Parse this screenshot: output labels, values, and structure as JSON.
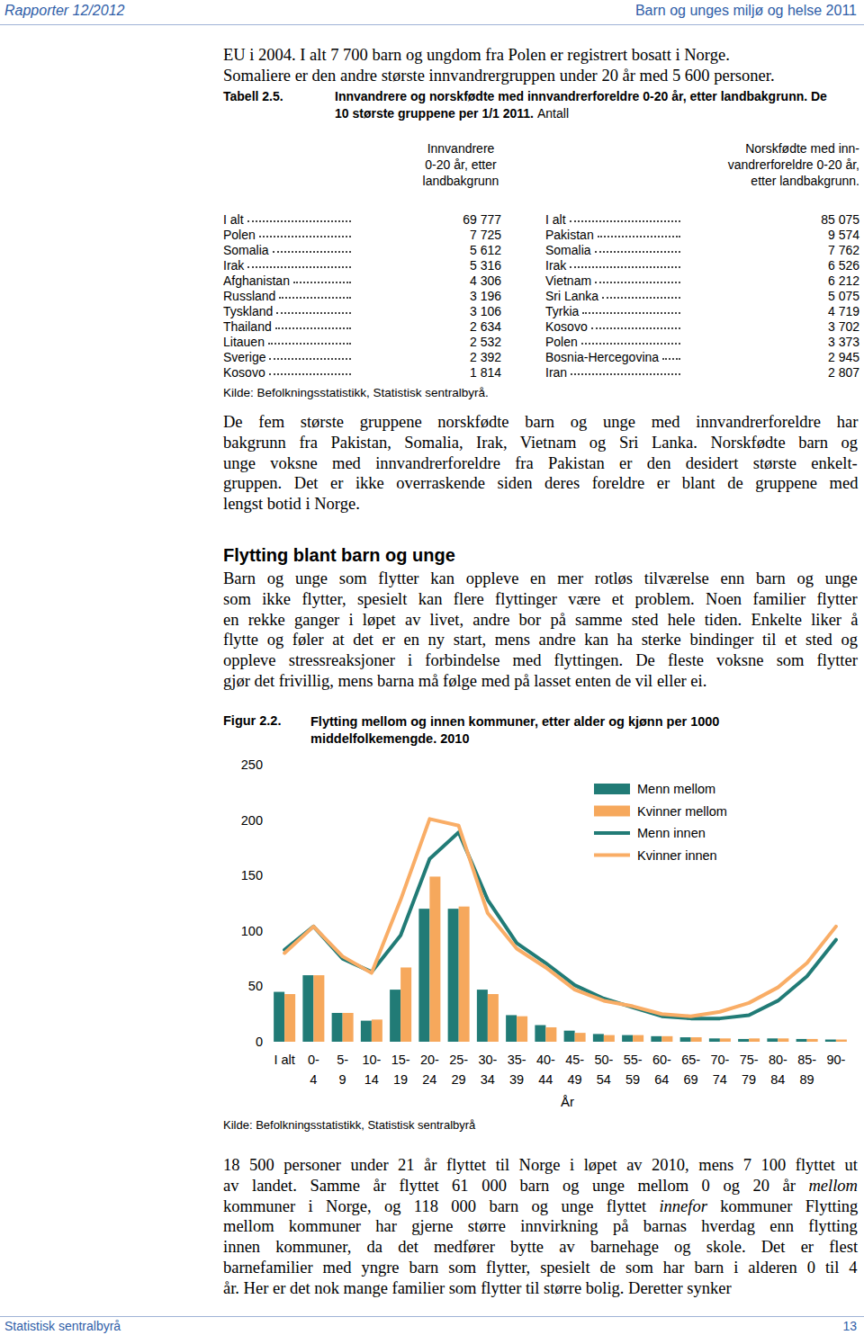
{
  "header": {
    "left": "Rapporter 12/2012",
    "right": "Barn og unges miljø og helse 2011"
  },
  "intro": {
    "lines": [
      "EU i 2004. I alt 7 700 barn og ungdom fra Polen er registrert bosatt i Norge.",
      "Somaliere er den andre største innvandrergruppen under 20 år med 5 600 personer."
    ]
  },
  "table": {
    "label": "Tabell 2.5.",
    "title_lines": [
      "Innvandrere og norskfødte med innvandrerforeldre 0-20 år, etter landbakgrunn. De",
      "10 største gruppene per 1/1 2011."
    ],
    "unit": "Antall",
    "columns": [
      {
        "header_lines": [
          "Innvandrere",
          "0-20 år, etter",
          "landbakgrunn"
        ],
        "rows": [
          {
            "name": "I alt",
            "value": "69 777"
          },
          {
            "name": "Polen",
            "value": "7 725"
          },
          {
            "name": "Somalia",
            "value": "5 612"
          },
          {
            "name": "Irak",
            "value": "5 316"
          },
          {
            "name": "Afghanistan",
            "value": "4 306"
          },
          {
            "name": "Russland",
            "value": "3 196"
          },
          {
            "name": "Tyskland",
            "value": "3 106"
          },
          {
            "name": "Thailand",
            "value": "2 634"
          },
          {
            "name": "Litauen",
            "value": "2 532"
          },
          {
            "name": "Sverige",
            "value": "2 392"
          },
          {
            "name": "Kosovo",
            "value": "1 814"
          }
        ]
      },
      {
        "header_lines": [
          "Norskfødte med inn-",
          "vandrerforeldre 0-20 år,",
          "etter landbakgrunn."
        ],
        "rows": [
          {
            "name": "I alt",
            "value": "85 075"
          },
          {
            "name": "Pakistan",
            "value": "9 574"
          },
          {
            "name": "Somalia",
            "value": "7 762"
          },
          {
            "name": "Irak",
            "value": "6 526"
          },
          {
            "name": "Vietnam",
            "value": "6 212"
          },
          {
            "name": "Sri Lanka",
            "value": "5 075"
          },
          {
            "name": "Tyrkia",
            "value": "4 719"
          },
          {
            "name": "Kosovo",
            "value": "3 702"
          },
          {
            "name": "Polen",
            "value": "3 373"
          },
          {
            "name": "Bosnia-Hercegovina",
            "value": "2 945"
          },
          {
            "name": "Iran",
            "value": "2 807"
          }
        ]
      }
    ],
    "source": "Kilde: Befolkningsstatistikk, Statistisk sentralbyrå."
  },
  "text_1": {
    "lines": [
      "De fem største gruppene norskfødte barn og unge med innvandrerforeldre har",
      "bakgrunn fra Pakistan, Somalia, Irak, Vietnam og Sri Lanka. Norskfødte barn og",
      "unge voksne med innvandrerforeldre fra Pakistan er den desidert største enkelt-",
      "gruppen. Det er ikke overraskende siden deres foreldre er blant de gruppene med",
      "lengst botid i Norge."
    ]
  },
  "heading": "Flytting blant barn og unge",
  "text_2": {
    "lines": [
      "Barn og unge som flytter kan oppleve en mer rotløs tilværelse enn barn og unge",
      "som ikke flytter, spesielt kan flere flyttinger være et problem. Noen familier flytter",
      "en rekke ganger i løpet av livet, andre bor på samme sted hele tiden. Enkelte liker å",
      "flytte og føler at det er en ny start, mens andre kan ha sterke bindinger til et sted og",
      "oppleve stressreaksjoner i forbindelse med flyttingen. De fleste voksne som flytter",
      "gjør det frivillig, mens barna må følge med på lasset enten de vil eller ei."
    ]
  },
  "figure": {
    "label": "Figur 2.2.",
    "source": "Kilde: Befolkningsstatistikk, Statistisk sentralbyrå"
  },
  "chart_data": {
    "type": "bar",
    "title": "Flytting mellom og innen kommuner, etter alder og kjønn per 1000\nmiddelfolkemengde. 2010",
    "x_label": "År",
    "categories": [
      "I alt",
      "0-4",
      "5-9",
      "10-14",
      "15-19",
      "20-24",
      "25-29",
      "30-34",
      "35-39",
      "40-44",
      "45-49",
      "50-54",
      "55-59",
      "60-64",
      "65-69",
      "70-74",
      "75-79",
      "80-84",
      "85-89",
      "90-"
    ],
    "series": [
      {
        "name": "Menn mellom",
        "type": "bar",
        "color": "#217b76",
        "values": [
          45,
          60,
          26,
          19,
          47,
          120,
          120,
          47,
          24,
          15,
          10,
          7,
          6,
          5,
          4,
          3,
          2.5,
          3,
          2.5,
          2
        ]
      },
      {
        "name": "Kvinner mellom",
        "type": "bar",
        "color": "#f6a85c",
        "values": [
          43,
          60,
          26,
          20,
          67,
          149,
          122,
          43,
          23,
          13,
          8,
          6,
          6,
          5,
          4,
          3,
          3,
          3,
          2.5,
          2
        ]
      },
      {
        "name": "Menn innen",
        "type": "line",
        "color": "#217b76",
        "values": [
          83,
          104,
          75,
          63,
          96,
          165,
          189,
          128,
          89,
          71,
          51,
          39,
          31,
          23,
          21,
          21,
          24,
          37,
          59,
          92
        ]
      },
      {
        "name": "Kvinner innen",
        "type": "line",
        "color": "#f9ad66",
        "values": [
          80,
          104,
          77,
          62,
          128,
          201,
          195,
          116,
          84,
          67,
          47,
          37,
          32,
          25,
          23,
          27,
          35,
          49,
          71,
          104
        ]
      }
    ],
    "ylim": [
      0,
      250
    ],
    "yticks": [
      0,
      50,
      100,
      150,
      200,
      250
    ],
    "grid": false,
    "legend": "top-right"
  },
  "text_3": {
    "lines": [
      "18 500 personer under 21 år flyttet til Norge i løpet av 2010, mens 7 100 flyttet ut",
      [
        {
          "text": "av landet. Samme år flyttet 61 000 barn og unge mellom 0 og 20 år "
        },
        {
          "text": "mellom",
          "italic": true
        }
      ],
      [
        {
          "text": "kommuner i Norge, og 118 000 barn og unge flyttet "
        },
        {
          "text": "innefor",
          "italic": true
        },
        {
          "text": " kommuner Flytting"
        }
      ],
      "mellom kommuner har gjerne større innvirkning på barnas hverdag enn flytting",
      "innen kommuner, da det medfører bytte av barnehage og skole. Det er flest",
      "barnefamilier med yngre barn som flytter, spesielt de som har barn i alderen 0 til 4",
      "år. Her er det nok mange familier som flytter til større bolig. Deretter synker"
    ]
  },
  "footer": {
    "left": "Statistisk sentralbyrå",
    "right": "13"
  }
}
